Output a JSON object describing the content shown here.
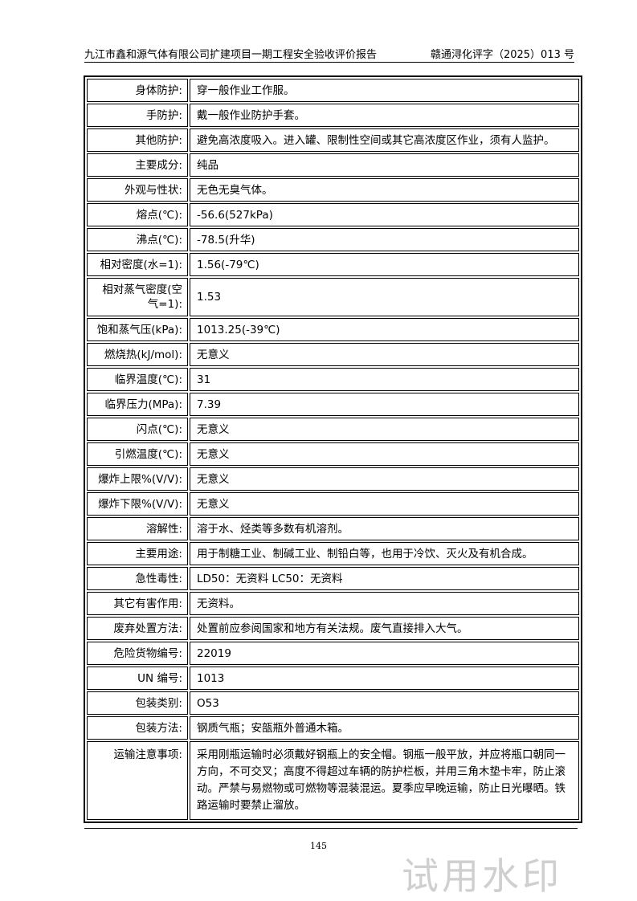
{
  "header": {
    "title": "九江市鑫和源气体有限公司扩建项目一期工程安全验收评价报告",
    "doc_no": "赣通浔化评字（2025）013 号"
  },
  "rows": [
    {
      "k": "身体防护:",
      "v": "穿一般作业工作服。"
    },
    {
      "k": "手防护:",
      "v": "戴一般作业防护手套。"
    },
    {
      "k": "其他防护:",
      "v": "避免高浓度吸入。进入罐、限制性空间或其它高浓度区作业，须有人监护。"
    },
    {
      "k": "主要成分:",
      "v": "纯品"
    },
    {
      "k": "外观与性状:",
      "v": "无色无臭气体。"
    },
    {
      "k": "熔点(℃):",
      "v": "-56.6(527kPa)"
    },
    {
      "k": "沸点(℃):",
      "v": "-78.5(升华)"
    },
    {
      "k": "相对密度(水=1):",
      "v": "1.56(-79℃)"
    },
    {
      "k": "相对蒸气密度(空气=1):",
      "v": "1.53"
    },
    {
      "k": "饱和蒸气压(kPa):",
      "v": "1013.25(-39℃)"
    },
    {
      "k": "燃烧热(kJ/mol):",
      "v": "无意义"
    },
    {
      "k": "临界温度(℃):",
      "v": "31"
    },
    {
      "k": "临界压力(MPa):",
      "v": "7.39"
    },
    {
      "k": "闪点(℃):",
      "v": "无意义"
    },
    {
      "k": "引燃温度(℃):",
      "v": "无意义"
    },
    {
      "k": "爆炸上限%(V/V):",
      "v": "无意义"
    },
    {
      "k": "爆炸下限%(V/V):",
      "v": "无意义"
    },
    {
      "k": "溶解性:",
      "v": "溶于水、烃类等多数有机溶剂。"
    },
    {
      "k": "主要用途:",
      "v": "用于制糖工业、制碱工业、制铅白等，也用于冷饮、灭火及有机合成。"
    },
    {
      "k": "急性毒性:",
      "v": "LD50：无资料  LC50：无资料"
    },
    {
      "k": "其它有害作用:",
      "v": "无资料。"
    },
    {
      "k": "废弃处置方法:",
      "v": "处置前应参阅国家和地方有关法规。废气直接排入大气。"
    },
    {
      "k": "危险货物编号:",
      "v": "22019"
    },
    {
      "k": "UN 编号:",
      "v": "1013"
    },
    {
      "k": "包装类别:",
      "v": "O53"
    },
    {
      "k": "包装方法:",
      "v": "钢质气瓶；安瓿瓶外普通木箱。"
    },
    {
      "k": "运输注意事项:",
      "v": "采用刚瓶运输时必须戴好钢瓶上的安全帽。钢瓶一般平放，并应将瓶口朝同一方向，不可交叉；高度不得超过车辆的防护栏板，并用三角木垫卡牢，防止滚动。严禁与易燃物或可燃物等混装混运。夏季应早晚运输，防止日光曝晒。铁路运输时要禁止溜放。"
    }
  ],
  "watermark": "试用水印",
  "page_number": "145"
}
